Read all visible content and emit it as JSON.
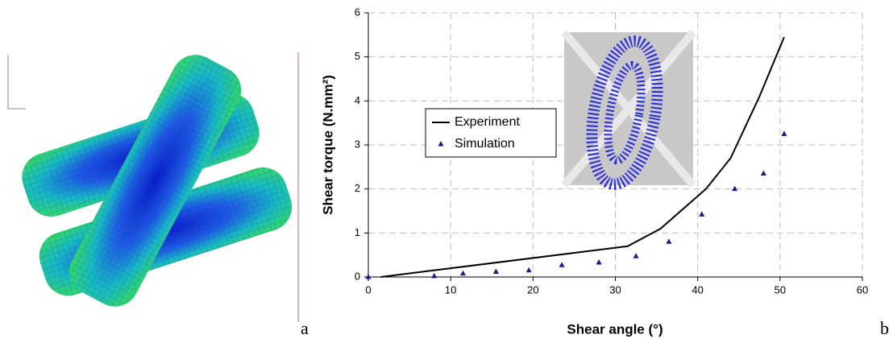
{
  "chart_data": {
    "type": "line",
    "x_label": "Shear angle (°)",
    "y_label": "Shear torque (N.mm²)",
    "panel_labels": [
      "a",
      "b"
    ],
    "series": [
      {
        "name": "Experiment",
        "type": "line",
        "color": "#000000",
        "x": [
          1.5,
          31.5,
          35.5,
          41,
          44,
          47.5,
          50.5
        ],
        "values": [
          0,
          0.7,
          1.1,
          2.0,
          2.7,
          4.1,
          5.45
        ]
      },
      {
        "name": "Simulation",
        "type": "scatter",
        "color": "#1a1a8c",
        "x": [
          0,
          8,
          11.5,
          15.5,
          19.5,
          23.5,
          28,
          32.5,
          36.5,
          40.5,
          44.5,
          48,
          50.5
        ],
        "values": [
          0,
          0.02,
          0.08,
          0.12,
          0.15,
          0.27,
          0.33,
          0.47,
          0.8,
          1.42,
          2.0,
          2.35,
          3.25
        ]
      }
    ],
    "xlim": [
      0,
      60
    ],
    "xticks": [
      0,
      10,
      20,
      30,
      40,
      50,
      60
    ],
    "ylim": [
      0,
      6
    ],
    "yticks": [
      0,
      1,
      2,
      3,
      4,
      5,
      6
    ],
    "grid": true
  }
}
